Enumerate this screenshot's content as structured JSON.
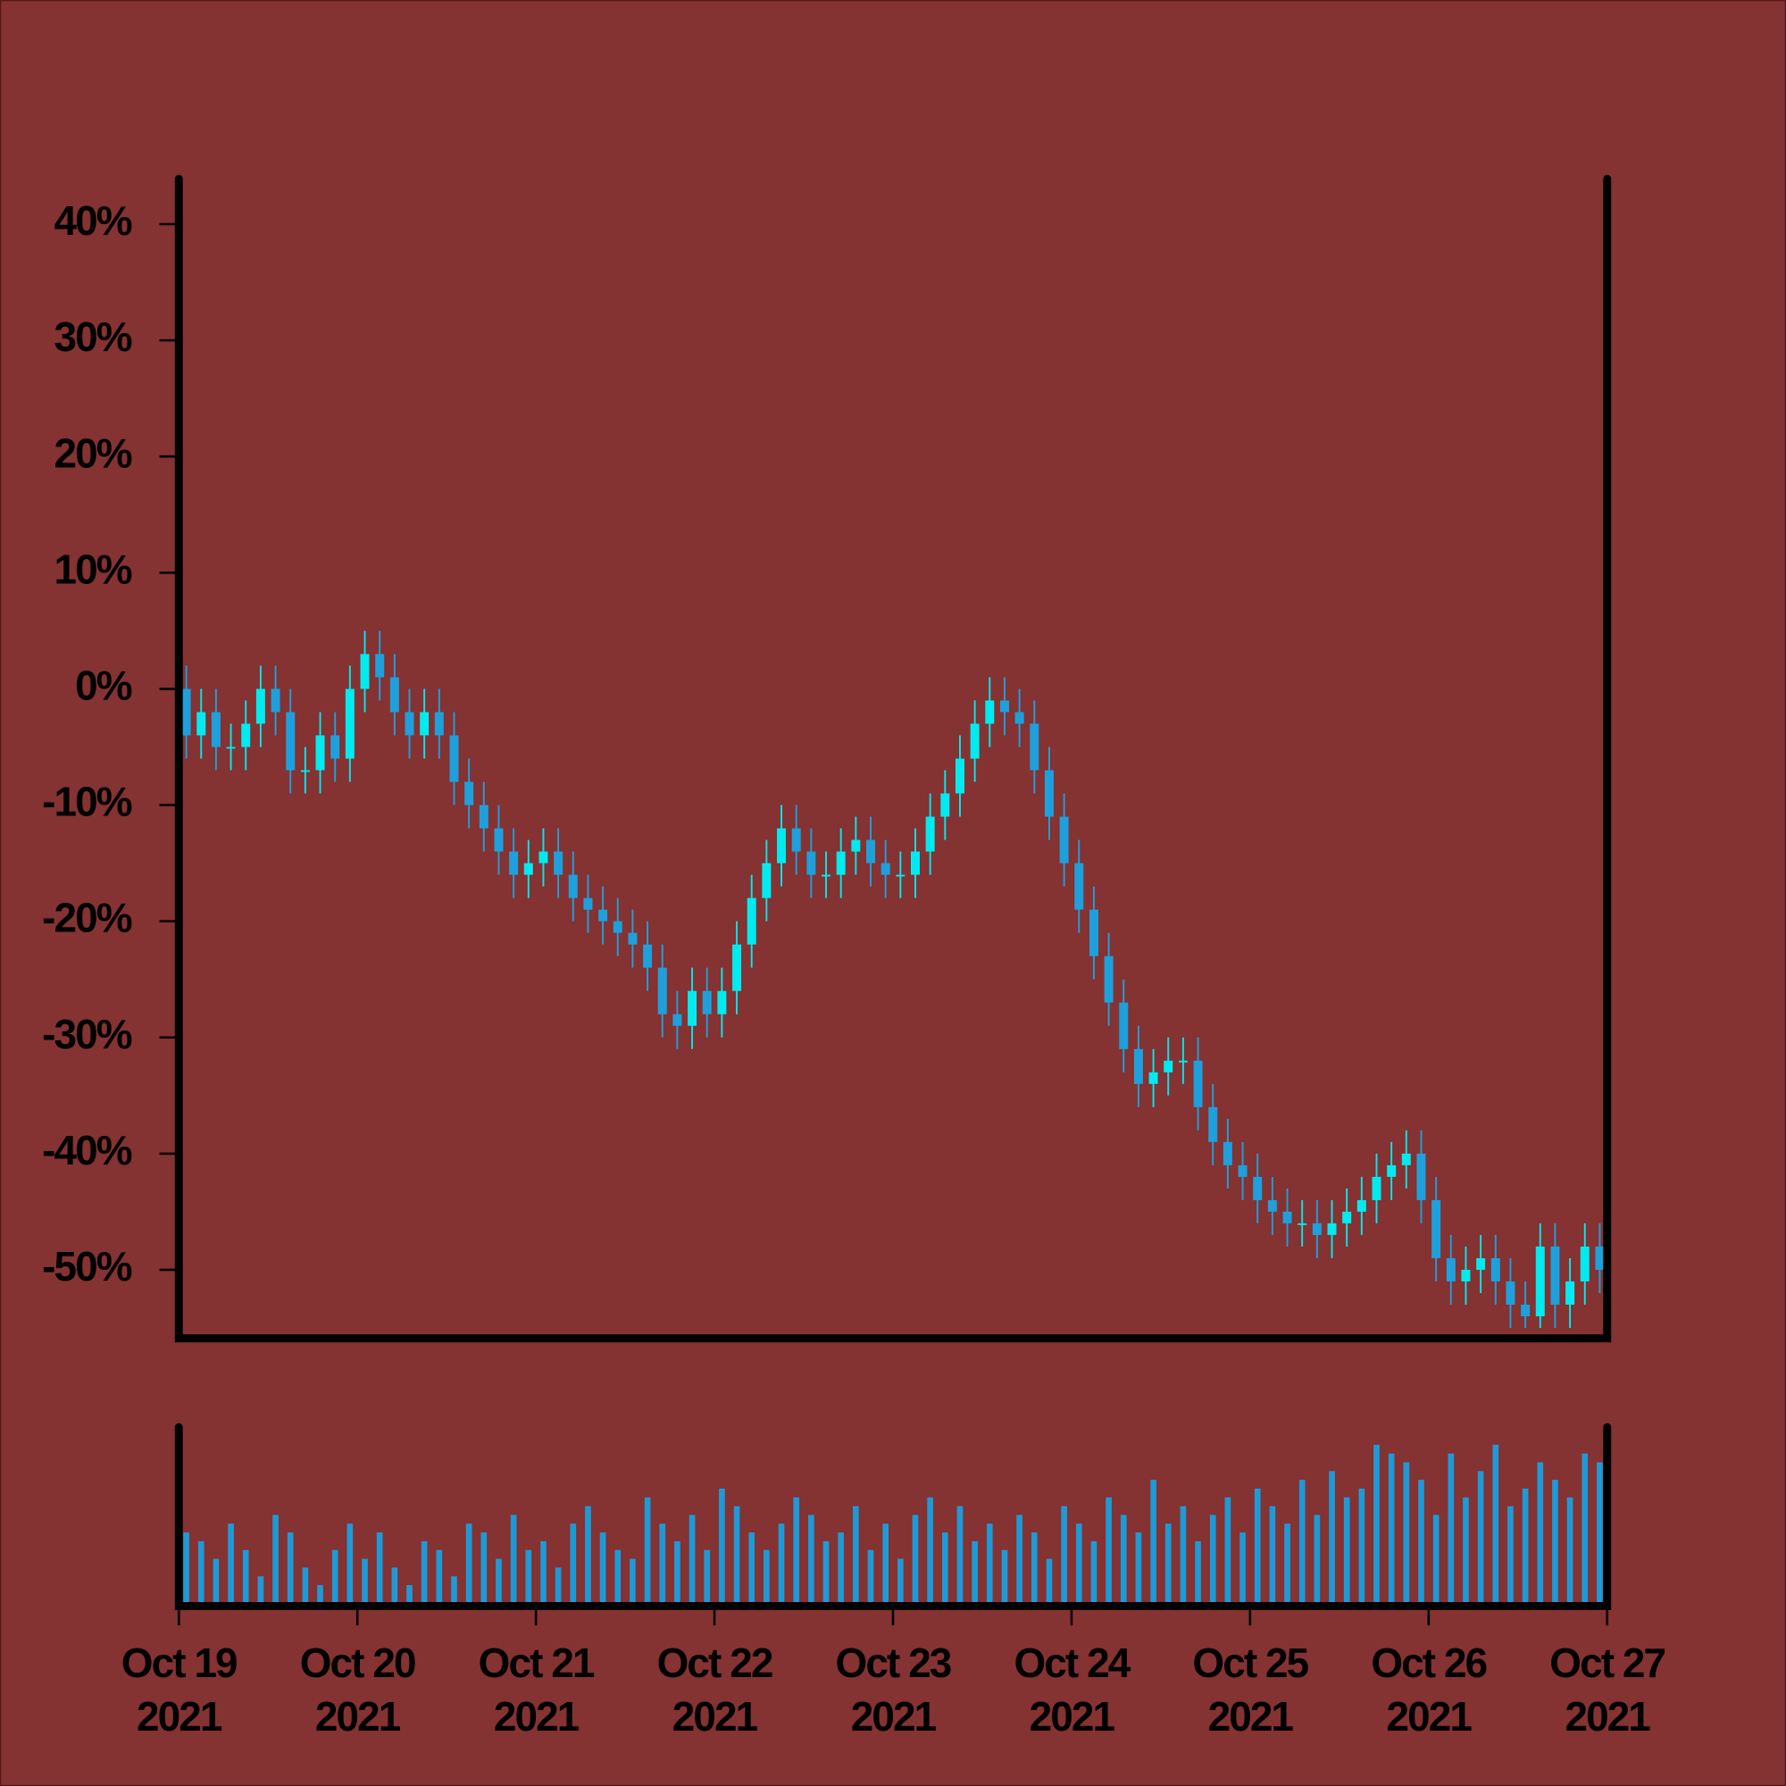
{
  "chart_data": {
    "type": "candlestick",
    "x": [
      1,
      3,
      5,
      7,
      9,
      11,
      13,
      15,
      17,
      19,
      21,
      23,
      25,
      27,
      29,
      31,
      33,
      35,
      37,
      39,
      41,
      43,
      45,
      47,
      49,
      51,
      53,
      55,
      57,
      59,
      61,
      63,
      65,
      67,
      69,
      71,
      73,
      75,
      77,
      79,
      81,
      83,
      85,
      87,
      89,
      91,
      93,
      95,
      97,
      99,
      101,
      103,
      105,
      107,
      109,
      111,
      113,
      115,
      117,
      119,
      121,
      123,
      125,
      127,
      129,
      131,
      133,
      135,
      137,
      139,
      141,
      143,
      145,
      147,
      149,
      151,
      153,
      155,
      157,
      159,
      161,
      163,
      165,
      167,
      169,
      171,
      173,
      175,
      177,
      179,
      181,
      183,
      185,
      187,
      189,
      191
    ],
    "open": [
      0,
      -4,
      -2,
      -5,
      -5,
      -3,
      0,
      -2,
      -7,
      -7,
      -4,
      -6,
      0,
      3,
      1,
      -2,
      -4,
      -2,
      -4,
      -8,
      -10,
      -12,
      -14,
      -16,
      -15,
      -14,
      -16,
      -18,
      -19,
      -20,
      -21,
      -22,
      -24,
      -28,
      -29,
      -26,
      -28,
      -26,
      -22,
      -18,
      -15,
      -12,
      -14,
      -16,
      -16,
      -14,
      -13,
      -15,
      -16,
      -16,
      -14,
      -11,
      -9,
      -6,
      -3,
      -1,
      -2,
      -3,
      -7,
      -11,
      -15,
      -19,
      -23,
      -27,
      -31,
      -34,
      -33,
      -32,
      -32,
      -36,
      -39,
      -41,
      -42,
      -44,
      -45,
      -46,
      -46,
      -47,
      -46,
      -45,
      -44,
      -42,
      -41,
      -40,
      -44,
      -49,
      -51,
      -50,
      -49,
      -51,
      -53,
      -54,
      -48,
      -53,
      -51,
      -48
    ],
    "high": [
      2,
      0,
      0,
      -3,
      -1,
      2,
      2,
      0,
      -5,
      -2,
      -2,
      2,
      5,
      5,
      3,
      0,
      0,
      0,
      -2,
      -6,
      -8,
      -10,
      -12,
      -13,
      -12,
      -12,
      -14,
      -16,
      -17,
      -18,
      -19,
      -20,
      -22,
      -26,
      -24,
      -24,
      -24,
      -20,
      -16,
      -13,
      -10,
      -10,
      -12,
      -14,
      -12,
      -11,
      -11,
      -13,
      -14,
      -12,
      -9,
      -7,
      -4,
      -1,
      1,
      1,
      0,
      -1,
      -5,
      -9,
      -13,
      -17,
      -21,
      -25,
      -29,
      -31,
      -30,
      -30,
      -30,
      -34,
      -37,
      -39,
      -40,
      -42,
      -43,
      -44,
      -44,
      -44,
      -43,
      -42,
      -40,
      -39,
      -38,
      -38,
      -42,
      -47,
      -48,
      -47,
      -47,
      -49,
      -51,
      -46,
      -46,
      -49,
      -46,
      -46
    ],
    "low": [
      -6,
      -6,
      -7,
      -7,
      -7,
      -5,
      -4,
      -9,
      -9,
      -9,
      -8,
      -8,
      -2,
      -1,
      -4,
      -6,
      -6,
      -6,
      -10,
      -12,
      -14,
      -16,
      -18,
      -18,
      -17,
      -18,
      -20,
      -21,
      -22,
      -23,
      -24,
      -26,
      -30,
      -31,
      -31,
      -30,
      -30,
      -28,
      -24,
      -20,
      -17,
      -16,
      -18,
      -18,
      -18,
      -16,
      -17,
      -18,
      -18,
      -18,
      -16,
      -13,
      -11,
      -8,
      -5,
      -4,
      -5,
      -9,
      -13,
      -17,
      -21,
      -25,
      -29,
      -33,
      -36,
      -36,
      -35,
      -34,
      -38,
      -41,
      -43,
      -44,
      -46,
      -47,
      -48,
      -48,
      -49,
      -49,
      -48,
      -47,
      -46,
      -44,
      -43,
      -46,
      -51,
      -53,
      -53,
      -52,
      -53,
      -55,
      -55,
      -55,
      -55,
      -55,
      -53,
      -52
    ],
    "close": [
      -4,
      -2,
      -5,
      -5,
      -3,
      0,
      -2,
      -7,
      -7,
      -4,
      -6,
      0,
      3,
      1,
      -2,
      -4,
      -2,
      -4,
      -8,
      -10,
      -12,
      -14,
      -16,
      -15,
      -14,
      -16,
      -18,
      -19,
      -20,
      -21,
      -22,
      -24,
      -28,
      -29,
      -26,
      -28,
      -26,
      -22,
      -18,
      -15,
      -12,
      -14,
      -16,
      -16,
      -14,
      -13,
      -15,
      -16,
      -16,
      -14,
      -11,
      -9,
      -6,
      -3,
      -1,
      -2,
      -3,
      -7,
      -11,
      -15,
      -19,
      -23,
      -27,
      -31,
      -34,
      -33,
      -32,
      -32,
      -36,
      -39,
      -41,
      -42,
      -44,
      -45,
      -46,
      -46,
      -47,
      -46,
      -45,
      -44,
      -42,
      -41,
      -40,
      -44,
      -49,
      -51,
      -50,
      -49,
      -51,
      -53,
      -54,
      -48,
      -53,
      -51,
      -48,
      -50
    ],
    "volume": [
      40,
      35,
      25,
      45,
      30,
      15,
      50,
      40,
      20,
      10,
      30,
      45,
      25,
      40,
      20,
      10,
      35,
      30,
      15,
      45,
      40,
      25,
      50,
      30,
      35,
      20,
      45,
      55,
      40,
      30,
      25,
      60,
      45,
      35,
      50,
      30,
      65,
      55,
      40,
      30,
      45,
      60,
      50,
      35,
      40,
      55,
      30,
      45,
      25,
      50,
      60,
      40,
      55,
      35,
      45,
      30,
      50,
      40,
      25,
      55,
      45,
      35,
      60,
      50,
      40,
      70,
      45,
      55,
      35,
      50,
      60,
      40,
      65,
      55,
      45,
      70,
      50,
      75,
      60,
      65,
      90,
      85,
      80,
      70,
      50,
      85,
      60,
      75,
      90,
      55,
      65,
      80,
      70,
      60,
      85,
      80
    ],
    "up_color": "#00ebf0",
    "down_color": "#1ea0dc",
    "volume_color": "#1e9ad6",
    "ylim": [
      -55.9,
      43.9
    ],
    "yticks": [
      {
        "value": -50,
        "label": "-50%"
      },
      {
        "value": -40,
        "label": "-40%"
      },
      {
        "value": -30,
        "label": "-30%"
      },
      {
        "value": -20,
        "label": "-20%"
      },
      {
        "value": -10,
        "label": "-10%"
      },
      {
        "value": 0,
        "label": "0%"
      },
      {
        "value": 10,
        "label": "10%"
      },
      {
        "value": 20,
        "label": "20%"
      },
      {
        "value": 30,
        "label": "30%"
      },
      {
        "value": 40,
        "label": "40%"
      }
    ],
    "xlim": [
      0,
      192
    ],
    "xticks": [
      {
        "value": 0,
        "label": "Oct 19\n2021"
      },
      {
        "value": 24,
        "label": "Oct 20\n2021"
      },
      {
        "value": 48,
        "label": "Oct 21\n2021"
      },
      {
        "value": 72,
        "label": "Oct 22\n2021"
      },
      {
        "value": 96,
        "label": "Oct 23\n2021"
      },
      {
        "value": 120,
        "label": "Oct 24\n2021"
      },
      {
        "value": 144,
        "label": "Oct 25\n2021"
      },
      {
        "value": 168,
        "label": "Oct 26\n2021"
      },
      {
        "value": 192,
        "label": "Oct 27\n2021"
      }
    ],
    "volume_lim": [
      0,
      100
    ]
  }
}
